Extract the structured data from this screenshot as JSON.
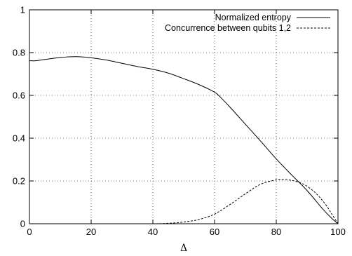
{
  "chart_data": {
    "type": "line",
    "title": "",
    "xlabel": "Δ",
    "ylabel": "",
    "xlim": [
      0,
      100
    ],
    "ylim": [
      0,
      1
    ],
    "grid": true,
    "legend_position": "top-right",
    "x_ticks": [
      0,
      20,
      40,
      60,
      80,
      100
    ],
    "y_ticks": [
      0,
      0.2,
      0.4,
      0.6,
      0.8,
      1
    ],
    "x_tick_labels": [
      "0",
      "20",
      "40",
      "60",
      "80",
      "100"
    ],
    "y_tick_labels": [
      "0",
      "0.2",
      "0.4",
      "0.6",
      "0.8",
      "1"
    ],
    "series": [
      {
        "name": "Normalized entropy",
        "style": "solid",
        "color": "#000000",
        "x": [
          0,
          2,
          5,
          10,
          15,
          20,
          25,
          30,
          35,
          40,
          45,
          50,
          55,
          60,
          62,
          65,
          70,
          75,
          80,
          85,
          90,
          95,
          98,
          100
        ],
        "y": [
          0.762,
          0.762,
          0.768,
          0.777,
          0.781,
          0.776,
          0.765,
          0.75,
          0.735,
          0.722,
          0.704,
          0.678,
          0.65,
          0.615,
          0.59,
          0.545,
          0.465,
          0.385,
          0.303,
          0.228,
          0.155,
          0.07,
          0.025,
          0
        ]
      },
      {
        "name": "Concurrence between qubits 1,2",
        "style": "dashed",
        "color": "#000000",
        "x": [
          33,
          40,
          45,
          50,
          55,
          60,
          65,
          70,
          75,
          80,
          82,
          85,
          88,
          90,
          93,
          96,
          98,
          100
        ],
        "y": [
          0,
          0,
          0.002,
          0.008,
          0.02,
          0.045,
          0.09,
          0.14,
          0.185,
          0.205,
          0.207,
          0.203,
          0.19,
          0.175,
          0.14,
          0.09,
          0.045,
          0
        ]
      }
    ]
  }
}
